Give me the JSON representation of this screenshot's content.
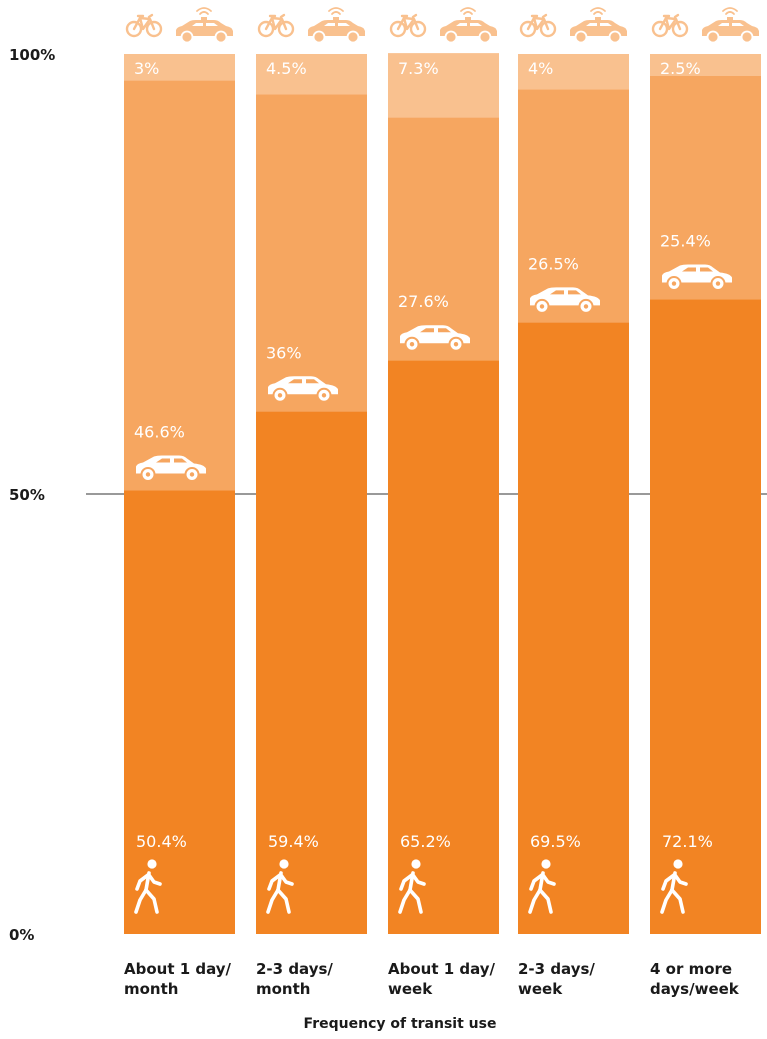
{
  "chart_data": {
    "type": "bar",
    "stacked": true,
    "title": "",
    "xlabel": "Frequency of transit use",
    "ylabel": "",
    "ylim": [
      0,
      100
    ],
    "yticks": [
      "0%",
      "50%",
      "100%"
    ],
    "categories": [
      [
        "About 1 day/",
        "month"
      ],
      [
        "2-3 days/",
        "month"
      ],
      [
        "About 1 day/",
        "week"
      ],
      [
        "2-3 days/",
        "week"
      ],
      [
        "4 or more",
        "days/week"
      ]
    ],
    "series": [
      {
        "icon": "walking-person-icon",
        "color": "#f28423",
        "values": [
          50.4,
          59.4,
          65.2,
          69.5,
          72.1
        ],
        "labels": [
          "50.4%",
          "59.4%",
          "65.2%",
          "69.5%",
          "72.1%"
        ]
      },
      {
        "icon": "car-icon",
        "color": "#f6a660",
        "values": [
          46.6,
          36,
          27.6,
          26.5,
          25.4
        ],
        "labels": [
          "46.6%",
          "36%",
          "27.6%",
          "26.5%",
          "25.4%"
        ]
      },
      {
        "icon": "bicycle-and-taxi-icon",
        "color": "#f9c18f",
        "values": [
          3,
          4.5,
          7.3,
          4,
          2.5
        ],
        "labels": [
          "3%",
          "4.5%",
          "7.3%",
          "4%",
          "2.5%"
        ]
      }
    ],
    "reference_line": 50,
    "grid": false,
    "legend": "none"
  }
}
